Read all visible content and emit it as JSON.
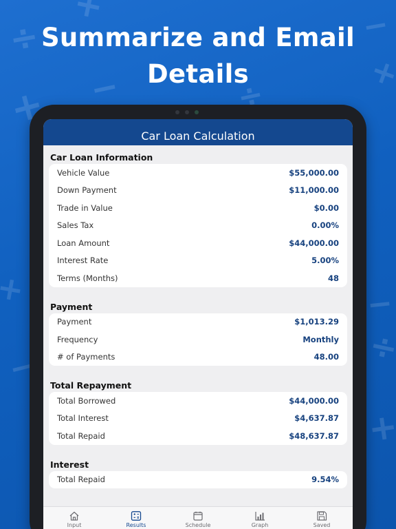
{
  "headline": {
    "line1": "Summarize and Email",
    "line2": "Details"
  },
  "nav": {
    "title": "Car Loan Calculation"
  },
  "sections": [
    {
      "title": "Car Loan Information",
      "rows": [
        {
          "label": "Vehicle Value",
          "value": "$55,000.00"
        },
        {
          "label": "Down Payment",
          "value": "$11,000.00"
        },
        {
          "label": "Trade in Value",
          "value": "$0.00"
        },
        {
          "label": "Sales Tax",
          "value": "0.00%"
        },
        {
          "label": "Loan Amount",
          "value": "$44,000.00"
        },
        {
          "label": "Interest Rate",
          "value": "5.00%"
        },
        {
          "label": "Terms (Months)",
          "value": "48"
        }
      ]
    },
    {
      "title": "Payment",
      "rows": [
        {
          "label": "Payment",
          "value": "$1,013.29"
        },
        {
          "label": "Frequency",
          "value": "Monthly"
        },
        {
          "label": "# of Payments",
          "value": "48.00"
        }
      ]
    },
    {
      "title": "Total Repayment",
      "rows": [
        {
          "label": "Total Borrowed",
          "value": "$44,000.00"
        },
        {
          "label": "Total Interest",
          "value": "$4,637.87"
        },
        {
          "label": "Total Repaid",
          "value": "$48,637.87"
        }
      ]
    },
    {
      "title": "Interest",
      "rows": [
        {
          "label": "Total Repaid",
          "value": "9.54%"
        }
      ]
    }
  ],
  "tabs": [
    {
      "label": "Input",
      "icon": "home-icon",
      "active": false
    },
    {
      "label": "Results",
      "icon": "calculator-icon",
      "active": true
    },
    {
      "label": "Schedule",
      "icon": "calendar-icon",
      "active": false
    },
    {
      "label": "Graph",
      "icon": "bar-chart-icon",
      "active": false
    },
    {
      "label": "Saved",
      "icon": "save-icon",
      "active": false
    }
  ],
  "colors": {
    "background": "#1565c8",
    "nav_bar": "#14488f",
    "value_text": "#17427f",
    "active_tab": "#14488f"
  }
}
